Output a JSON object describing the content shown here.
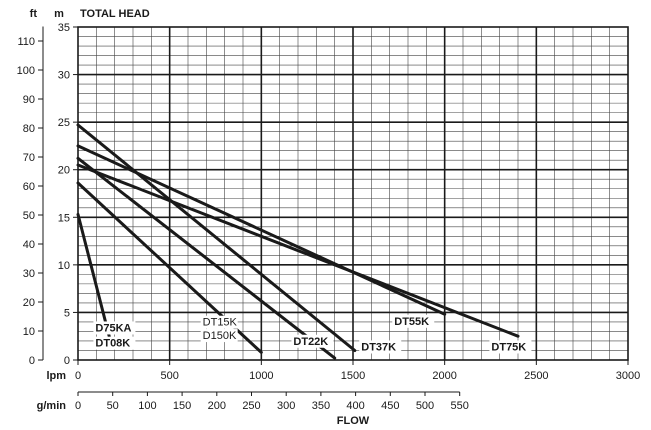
{
  "chart_data": {
    "type": "line",
    "title": "TOTAL HEAD",
    "xlabel": "FLOW",
    "axes": {
      "left_outer": {
        "unit": "ft",
        "range": [
          0,
          115
        ],
        "ticks": [
          0,
          10,
          20,
          30,
          40,
          50,
          60,
          70,
          80,
          90,
          100,
          110
        ]
      },
      "left_inner": {
        "unit": "m",
        "range": [
          0,
          35
        ],
        "ticks": [
          0,
          5,
          10,
          15,
          20,
          25,
          30,
          35
        ]
      },
      "bottom_lpm": {
        "unit": "lpm",
        "range": [
          0,
          3000
        ],
        "ticks": [
          0,
          500,
          1000,
          1500,
          2000,
          2500,
          3000
        ]
      },
      "bottom_gpm": {
        "unit": "g/min",
        "range": [
          0,
          550
        ],
        "ticks": [
          0,
          50,
          100,
          150,
          200,
          250,
          300,
          350,
          400,
          450,
          500,
          550
        ]
      }
    },
    "grid": true,
    "series": [
      {
        "name": "D75KA / DT08K",
        "x": [
          0,
          170
        ],
        "y": [
          15.3,
          2.5
        ]
      },
      {
        "name": "DT15K / D150K",
        "x": [
          0,
          1000
        ],
        "y": [
          18.6,
          0.8
        ]
      },
      {
        "name": "DT22K",
        "x": [
          0,
          1400
        ],
        "y": [
          21.2,
          0.2
        ]
      },
      {
        "name": "DT37K",
        "x": [
          0,
          1510
        ],
        "y": [
          24.7,
          1.0
        ]
      },
      {
        "name": "DT55K",
        "x": [
          0,
          2000
        ],
        "y": [
          22.5,
          4.8
        ]
      },
      {
        "name": "DT75K",
        "x": [
          0,
          2400
        ],
        "y": [
          20.5,
          2.5
        ]
      }
    ],
    "labels": [
      {
        "text": "D75KA",
        "x": 95,
        "y": 3.0
      },
      {
        "text": "DT08K",
        "x": 95,
        "y": 1.4
      },
      {
        "text": "DT15K",
        "x": 680,
        "y": 3.6
      },
      {
        "text": "D150K",
        "x": 680,
        "y": 2.2
      },
      {
        "text": "DT22K",
        "x": 1175,
        "y": 1.6
      },
      {
        "text": "DT37K",
        "x": 1545,
        "y": 1.0
      },
      {
        "text": "DT55K",
        "x": 1725,
        "y": 3.7
      },
      {
        "text": "DT75K",
        "x": 2255,
        "y": 1.0
      }
    ]
  }
}
